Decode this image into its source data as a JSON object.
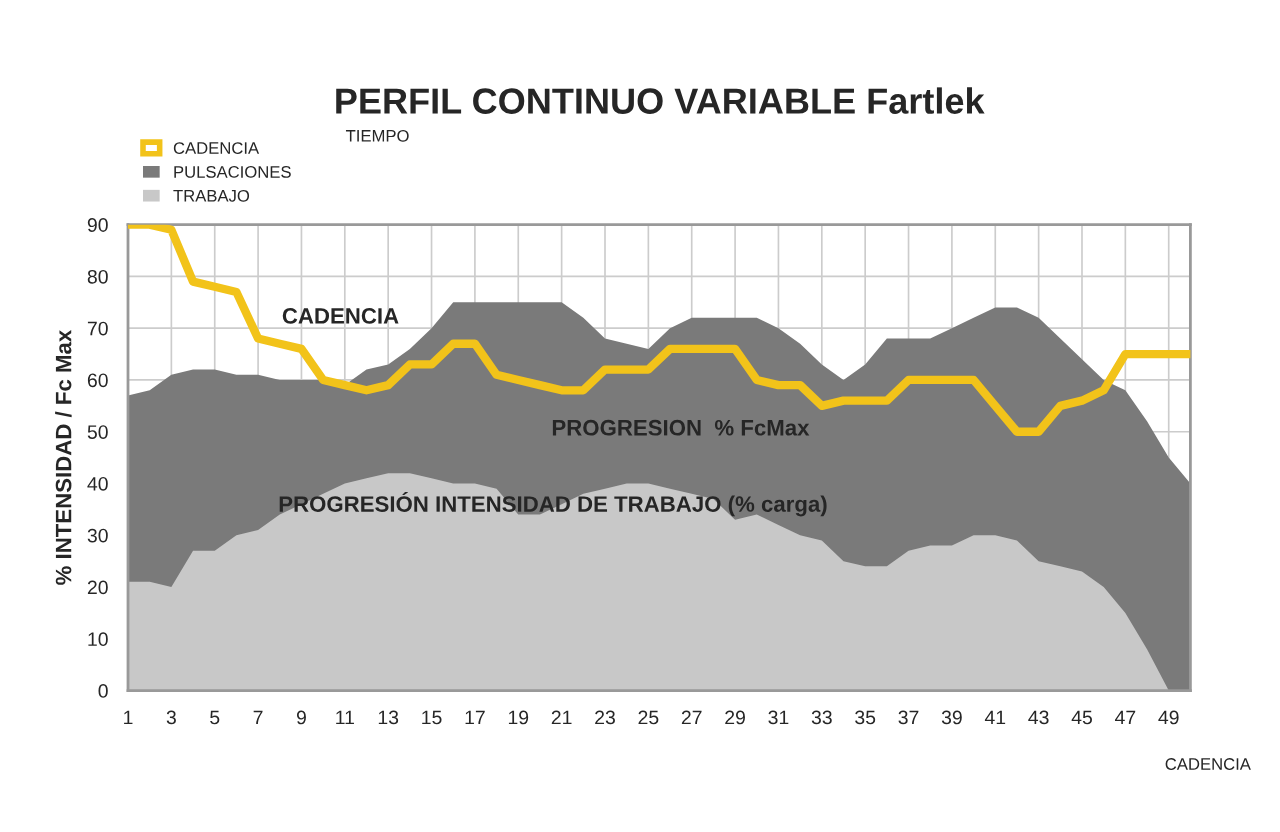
{
  "chart_data": {
    "type": "area",
    "title": "PERFIL CONTINUO VARIABLE Fartlek",
    "ylabel": "% INTENSIDAD / Fc Max",
    "x": [
      1,
      2,
      3,
      4,
      5,
      6,
      7,
      8,
      9,
      10,
      11,
      12,
      13,
      14,
      15,
      16,
      17,
      18,
      19,
      20,
      21,
      22,
      23,
      24,
      25,
      26,
      27,
      28,
      29,
      30,
      31,
      32,
      33,
      34,
      35,
      36,
      37,
      38,
      39,
      40,
      41,
      42,
      43,
      44,
      45,
      46,
      47,
      48,
      49,
      50
    ],
    "series": [
      {
        "name": "CADENCIA",
        "type": "line",
        "color": "#f2c31a",
        "values": [
          90,
          90,
          89,
          79,
          78,
          77,
          68,
          67,
          66,
          60,
          59,
          58,
          59,
          63,
          63,
          67,
          67,
          61,
          60,
          59,
          58,
          58,
          62,
          62,
          62,
          66,
          66,
          66,
          66,
          60,
          59,
          59,
          55,
          56,
          56,
          56,
          60,
          60,
          60,
          60,
          55,
          50,
          50,
          55,
          56,
          58,
          65,
          65,
          65,
          65
        ]
      },
      {
        "name": "PULSACIONES",
        "color": "#7a7a7a",
        "values": [
          57,
          58,
          61,
          62,
          62,
          61,
          61,
          60,
          60,
          60,
          59,
          62,
          63,
          66,
          70,
          75,
          75,
          75,
          75,
          75,
          75,
          72,
          68,
          67,
          66,
          70,
          72,
          72,
          72,
          72,
          70,
          67,
          63,
          60,
          63,
          68,
          68,
          68,
          70,
          72,
          74,
          74,
          72,
          68,
          64,
          60,
          58,
          52,
          45,
          40
        ]
      },
      {
        "name": "TRABAJO",
        "color": "#c8c8c8",
        "values": [
          21,
          21,
          20,
          27,
          27,
          30,
          31,
          34,
          36,
          38,
          40,
          41,
          42,
          42,
          41,
          40,
          40,
          39,
          34,
          34,
          36,
          38,
          39,
          40,
          40,
          39,
          38,
          37,
          33,
          34,
          32,
          30,
          29,
          25,
          24,
          24,
          27,
          28,
          28,
          30,
          30,
          29,
          25,
          24,
          23,
          20,
          15,
          8,
          0,
          0
        ]
      }
    ],
    "xticks": [
      1,
      3,
      5,
      7,
      9,
      11,
      13,
      15,
      17,
      19,
      21,
      23,
      25,
      27,
      29,
      31,
      33,
      35,
      37,
      39,
      41,
      43,
      45,
      47,
      49
    ],
    "xlim": [
      1,
      50
    ],
    "ylim": [
      0,
      90
    ],
    "yticks": [
      0,
      10,
      20,
      30,
      40,
      50,
      60,
      70,
      80,
      90
    ],
    "grid": true,
    "legend": "top left",
    "annotations": [
      "CADENCIA",
      "PROGRESION  % FcMax",
      "PROGRESIÓN INTENSIDAD DE TRABAJO (% carga)",
      "TIEMPO",
      "CADENCIA"
    ]
  }
}
